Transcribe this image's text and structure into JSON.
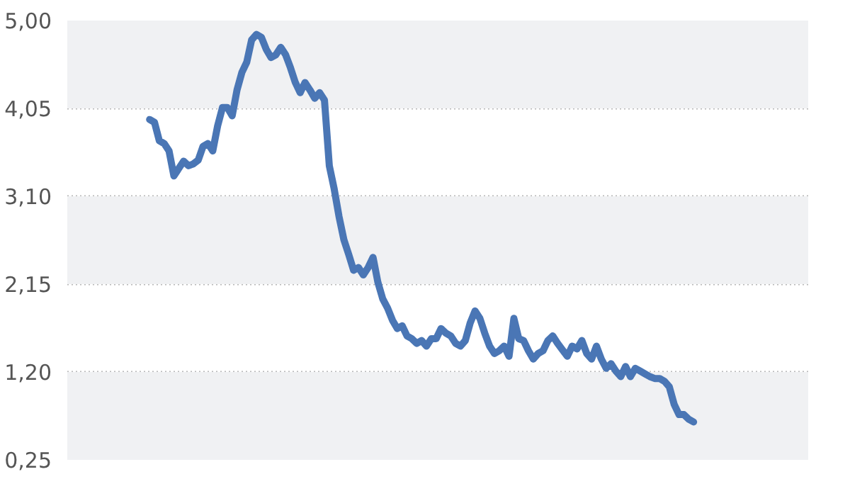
{
  "chart_data": {
    "type": "line",
    "categories": [
      null,
      null,
      null,
      null,
      null,
      null,
      null,
      null,
      null,
      null,
      null,
      null,
      null,
      null,
      null,
      null,
      null,
      null,
      null,
      null,
      null,
      null,
      null,
      null,
      null,
      null,
      null,
      null,
      null,
      null,
      null,
      null,
      null,
      null,
      null,
      null,
      null,
      null,
      null,
      null,
      null,
      null,
      null,
      null,
      null,
      null,
      null,
      null,
      null,
      null,
      null,
      null,
      null,
      null,
      null,
      null,
      null,
      null,
      null,
      null,
      null,
      null,
      null,
      null,
      null,
      null,
      null,
      null,
      null,
      null,
      null,
      null,
      null,
      null,
      null,
      null,
      null,
      null,
      null,
      null,
      null,
      null,
      null,
      null,
      null,
      null,
      null,
      null,
      null,
      null,
      null,
      null,
      null,
      null,
      null,
      null,
      null,
      null,
      null,
      null,
      null,
      null,
      null,
      null,
      null,
      null,
      null,
      null,
      null,
      null,
      null,
      null,
      null
    ],
    "series": [
      {
        "color": "#4a76b5",
        "values": [
          3.93,
          3.9,
          3.7,
          3.67,
          3.59,
          3.32,
          3.4,
          3.48,
          3.43,
          3.45,
          3.49,
          3.64,
          3.67,
          3.59,
          3.86,
          4.06,
          4.06,
          3.97,
          4.25,
          4.44,
          4.55,
          4.79,
          4.85,
          4.82,
          4.69,
          4.6,
          4.63,
          4.71,
          4.63,
          4.49,
          4.33,
          4.22,
          4.33,
          4.25,
          4.16,
          4.22,
          4.14,
          3.43,
          3.18,
          2.88,
          2.63,
          2.47,
          2.3,
          2.33,
          2.25,
          2.33,
          2.44,
          2.17,
          1.99,
          1.89,
          1.76,
          1.67,
          1.7,
          1.59,
          1.56,
          1.51,
          1.54,
          1.48,
          1.56,
          1.56,
          1.67,
          1.62,
          1.59,
          1.51,
          1.48,
          1.54,
          1.73,
          1.86,
          1.78,
          1.62,
          1.48,
          1.4,
          1.43,
          1.48,
          1.37,
          1.78,
          1.56,
          1.54,
          1.43,
          1.34,
          1.4,
          1.43,
          1.54,
          1.59,
          1.51,
          1.44,
          1.37,
          1.48,
          1.45,
          1.54,
          1.4,
          1.34,
          1.48,
          1.34,
          1.24,
          1.29,
          1.21,
          1.15,
          1.26,
          1.15,
          1.24,
          1.21,
          1.18,
          1.15,
          1.13,
          1.13,
          1.1,
          1.04,
          0.85,
          0.74,
          0.74,
          0.69,
          0.66
        ]
      }
    ],
    "ylim": [
      0.25,
      5.0
    ],
    "yticks": [
      {
        "value": 0.25,
        "label": "0,25"
      },
      {
        "value": 1.2,
        "label": "1,20"
      },
      {
        "value": 2.15,
        "label": "2,15"
      },
      {
        "value": 3.1,
        "label": "3,10"
      },
      {
        "value": 4.05,
        "label": "4,05"
      },
      {
        "value": 5.0,
        "label": "5,00"
      }
    ],
    "bands": [
      {
        "axis": "y",
        "from": 0.25,
        "to": 1.2,
        "color": "#f0f1f3"
      },
      {
        "axis": "y",
        "from": 2.15,
        "to": 3.1,
        "color": "#f0f1f3"
      },
      {
        "axis": "y",
        "from": 4.05,
        "to": 5.0,
        "color": "#f0f1f3"
      }
    ],
    "grid": "y",
    "tick_labels": "y",
    "line_style": "solid"
  }
}
